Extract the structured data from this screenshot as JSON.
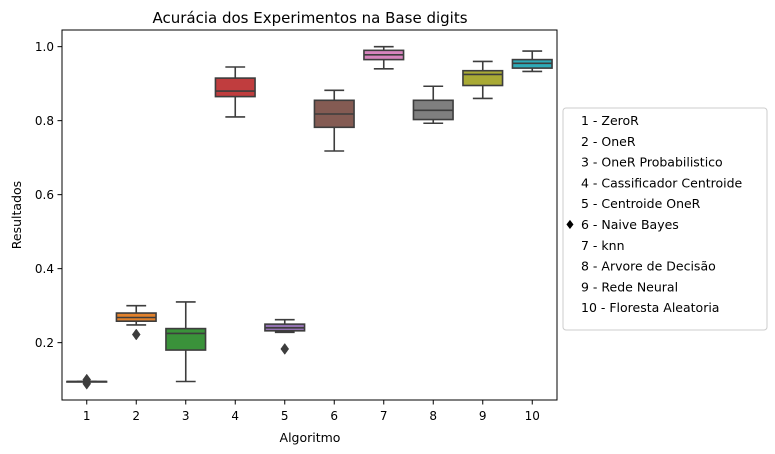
{
  "chart_data": {
    "type": "box",
    "title": "Acurácia dos Experimentos na Base digits",
    "xlabel": "Algoritmo",
    "ylabel": "Resultados",
    "categories": [
      "1",
      "2",
      "3",
      "4",
      "5",
      "6",
      "7",
      "8",
      "9",
      "10"
    ],
    "ylim": [
      0.045,
      1.045
    ],
    "yticks": [
      0.2,
      0.4,
      0.6,
      0.8,
      1.0
    ],
    "ytick_labels": [
      "0.2",
      "0.4",
      "0.6",
      "0.8",
      "1.0"
    ],
    "grid": false,
    "legend_position": "right",
    "legend": [
      "1 - ZeroR",
      "2 - OneR",
      "3 - OneR Probabilistico",
      "4 - Cassificador Centroide",
      "5 - Centroide OneR",
      "6 - Naive Bayes",
      "7 - knn",
      "8 - Arvore de Decisão",
      "9 - Rede Neural",
      "10 - Floresta Aleatoria"
    ],
    "legend_marker": "♦",
    "boxes": [
      {
        "category": "1",
        "color": "#3274a1",
        "whisker_low": 0.095,
        "q1": 0.095,
        "median": 0.095,
        "q3": 0.095,
        "whisker_high": 0.095,
        "outliers": [
          0.089,
          0.094,
          0.1
        ]
      },
      {
        "category": "2",
        "color": "#e1812c",
        "whisker_low": 0.248,
        "q1": 0.258,
        "median": 0.268,
        "q3": 0.28,
        "whisker_high": 0.3,
        "outliers": [
          0.222
        ]
      },
      {
        "category": "3",
        "color": "#3a923a",
        "whisker_low": 0.095,
        "q1": 0.18,
        "median": 0.225,
        "q3": 0.238,
        "whisker_high": 0.31,
        "outliers": []
      },
      {
        "category": "4",
        "color": "#c03d3e",
        "whisker_low": 0.81,
        "q1": 0.865,
        "median": 0.88,
        "q3": 0.915,
        "whisker_high": 0.945,
        "outliers": []
      },
      {
        "category": "5",
        "color": "#9372b2",
        "whisker_low": 0.228,
        "q1": 0.232,
        "median": 0.24,
        "q3": 0.25,
        "whisker_high": 0.262,
        "outliers": [
          0.183
        ]
      },
      {
        "category": "6",
        "color": "#845b53",
        "whisker_low": 0.718,
        "q1": 0.782,
        "median": 0.818,
        "q3": 0.855,
        "whisker_high": 0.882,
        "outliers": []
      },
      {
        "category": "7",
        "color": "#d684bd",
        "whisker_low": 0.94,
        "q1": 0.965,
        "median": 0.978,
        "q3": 0.99,
        "whisker_high": 1.0,
        "outliers": []
      },
      {
        "category": "8",
        "color": "#7f7f7f",
        "whisker_low": 0.793,
        "q1": 0.803,
        "median": 0.828,
        "q3": 0.855,
        "whisker_high": 0.893,
        "outliers": []
      },
      {
        "category": "9",
        "color": "#a9aa35",
        "whisker_low": 0.86,
        "q1": 0.895,
        "median": 0.925,
        "q3": 0.935,
        "whisker_high": 0.96,
        "outliers": []
      },
      {
        "category": "10",
        "color": "#2eabb8",
        "whisker_low": 0.933,
        "q1": 0.942,
        "median": 0.955,
        "q3": 0.965,
        "whisker_high": 0.988,
        "outliers": []
      }
    ]
  }
}
